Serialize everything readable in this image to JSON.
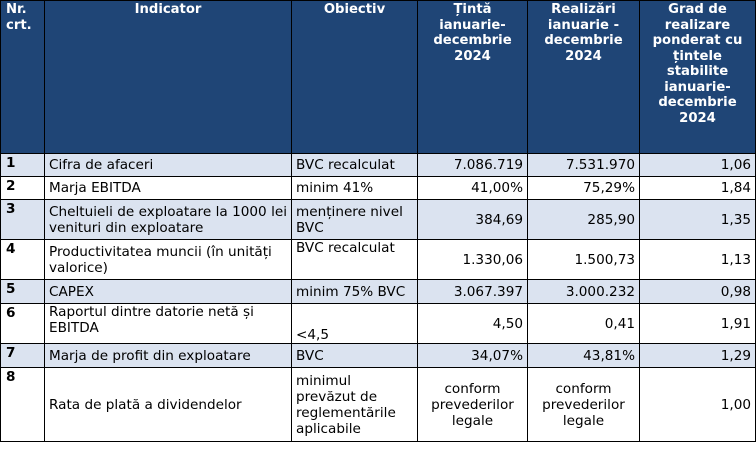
{
  "headers": [
    "Nr. crt.",
    "Indicator",
    "Obiectiv",
    "Țintă ianuarie-decembrie 2024",
    "Realizări ianuarie - decembrie 2024",
    "Grad de realizare ponderat cu țintele stabilite ianuarie-decembrie 2024"
  ],
  "rows": [
    {
      "nr": "1",
      "indicator": "Cifra de afaceri",
      "obiectiv": "BVC recalculat",
      "tinta": "7.086.719",
      "realizari": "7.531.970",
      "grad": "1,06"
    },
    {
      "nr": "2",
      "indicator": "Marja EBITDA",
      "obiectiv": "minim 41%",
      "tinta": "41,00%",
      "realizari": "75,29%",
      "grad": "1,84"
    },
    {
      "nr": "3",
      "indicator": "Cheltuieli de exploatare la 1000 lei venituri din exploatare",
      "obiectiv": "menținere nivel BVC",
      "tinta": "384,69",
      "realizari": "285,90",
      "grad": "1,35"
    },
    {
      "nr": "4",
      "indicator": "Productivitatea muncii (în unități valorice)",
      "obiectiv": "BVC recalculat",
      "tinta": "1.330,06",
      "realizari": "1.500,73",
      "grad": "1,13"
    },
    {
      "nr": "5",
      "indicator": "CAPEX",
      "obiectiv": "minim 75% BVC",
      "tinta": "3.067.397",
      "realizari": "3.000.232",
      "grad": "0,98"
    },
    {
      "nr": "6",
      "indicator": "Raportul dintre datorie netă și EBITDA",
      "obiectiv": "<4,5",
      "tinta": "4,50",
      "realizari": "0,41",
      "grad": "1,91"
    },
    {
      "nr": "7",
      "indicator": "Marja de profit din exploatare",
      "obiectiv": "BVC",
      "tinta": "34,07%",
      "realizari": "43,81%",
      "grad": "1,29"
    },
    {
      "nr": "8",
      "indicator": "Rata de plată a dividendelor",
      "obiectiv": "minimul prevăzut de reglementările aplicabile",
      "tinta": "conform prevederilor legale",
      "realizari": "conform prevederilor legale",
      "grad": "1,00"
    }
  ]
}
